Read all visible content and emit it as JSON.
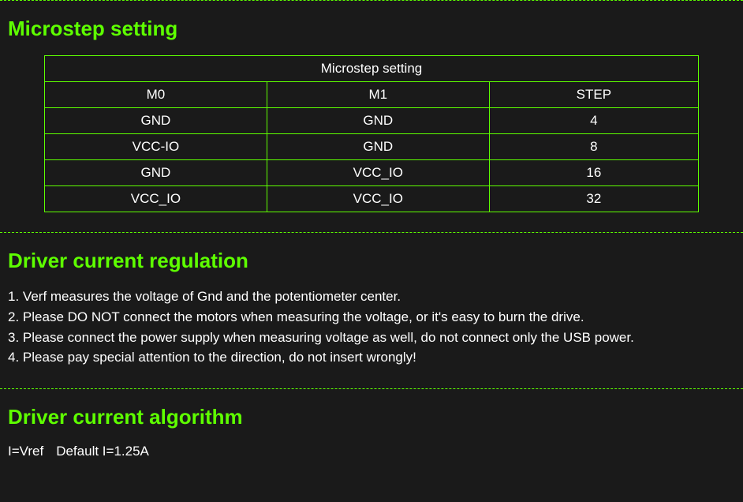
{
  "colors": {
    "accent": "#5eff00",
    "background": "#1a1a1a",
    "text": "#ffffff"
  },
  "section1": {
    "heading": "Microstep setting",
    "table": {
      "title": "Microstep setting",
      "headers": [
        "M0",
        "M1",
        "STEP"
      ],
      "rows": [
        [
          "GND",
          "GND",
          "4"
        ],
        [
          "VCC-IO",
          "GND",
          "8"
        ],
        [
          "GND",
          "VCC_IO",
          "16"
        ],
        [
          "VCC_IO",
          "VCC_IO",
          "32"
        ]
      ]
    }
  },
  "section2": {
    "heading": "Driver current regulation",
    "items": [
      "Verf measures the voltage of Gnd and the potentiometer center.",
      "Please DO NOT connect the motors when measuring the voltage, or it's easy to burn the drive.",
      "Please connect the power supply when measuring voltage as well, do not connect only the USB power.",
      "Please pay special attention to the direction, do not insert wrongly!"
    ]
  },
  "section3": {
    "heading": "Driver current algorithm",
    "formula_left": "I=Vref",
    "formula_right": "Default I=1.25A"
  }
}
